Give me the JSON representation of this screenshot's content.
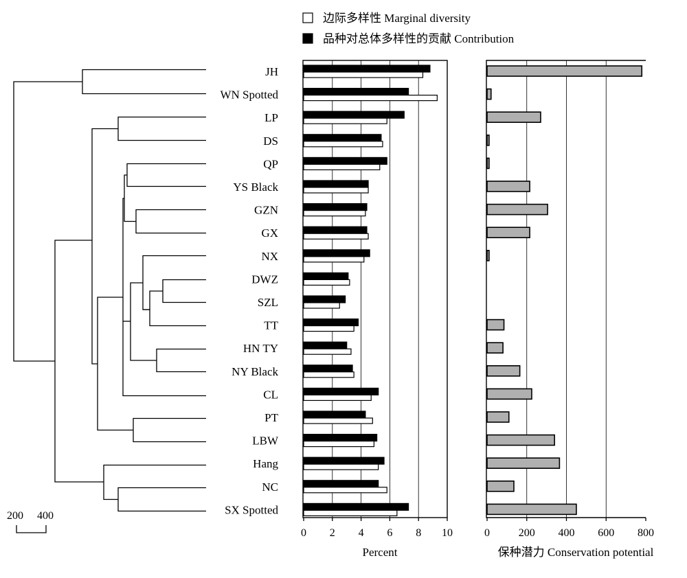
{
  "legend": {
    "marginal": "边际多样性  Marginal diversity",
    "contribution": "品种对总体多样性的贡献  Contribution"
  },
  "scale_bar": {
    "label_left": "200",
    "label_right": "400"
  },
  "chart_data": [
    {
      "type": "bar",
      "orientation": "horizontal",
      "categories": [
        "JH",
        "WN Spotted",
        "LP",
        "DS",
        "QP",
        "YS Black",
        "GZN",
        "GX",
        "NX",
        "DWZ",
        "SZL",
        "TT",
        "HN TY",
        "NY Black",
        "CL",
        "PT",
        "LBW",
        "Hang",
        "NC",
        "SX Spotted"
      ],
      "series": [
        {
          "name": "品种对总体多样性的贡献 Contribution",
          "color": "#000000",
          "values": [
            8.8,
            7.3,
            7.0,
            5.4,
            5.8,
            4.5,
            4.4,
            4.4,
            4.6,
            3.1,
            2.9,
            3.8,
            3.0,
            3.4,
            5.2,
            4.3,
            5.1,
            5.6,
            5.2,
            7.3
          ]
        },
        {
          "name": "边际多样性 Marginal diversity",
          "color": "#ffffff",
          "values": [
            8.3,
            9.3,
            5.8,
            5.5,
            5.3,
            4.5,
            4.3,
            4.5,
            4.2,
            3.2,
            2.5,
            3.5,
            3.3,
            3.5,
            4.7,
            4.8,
            4.9,
            5.2,
            5.8,
            6.5
          ]
        }
      ],
      "xlabel": "Percent",
      "xlim": [
        0,
        10
      ],
      "xticks": [
        "0",
        "2",
        "4",
        "6",
        "8",
        "10"
      ],
      "grid": "vertical"
    },
    {
      "type": "bar",
      "orientation": "horizontal",
      "categories": [
        "JH",
        "WN Spotted",
        "LP",
        "DS",
        "QP",
        "YS Black",
        "GZN",
        "GX",
        "NX",
        "DWZ",
        "SZL",
        "TT",
        "HN TY",
        "NY Black",
        "CL",
        "PT",
        "LBW",
        "Hang",
        "NC",
        "SX Spotted"
      ],
      "series": [
        {
          "color": "#b0b0b0",
          "values": [
            780,
            20,
            270,
            10,
            10,
            215,
            305,
            215,
            10,
            0,
            0,
            85,
            80,
            165,
            225,
            110,
            340,
            365,
            135,
            450
          ]
        }
      ],
      "xlabel": "保种潜力  Conservation potential",
      "xlim": [
        0,
        800
      ],
      "xticks": [
        "0",
        "200",
        "400",
        "600",
        "800"
      ],
      "grid": "vertical"
    }
  ]
}
